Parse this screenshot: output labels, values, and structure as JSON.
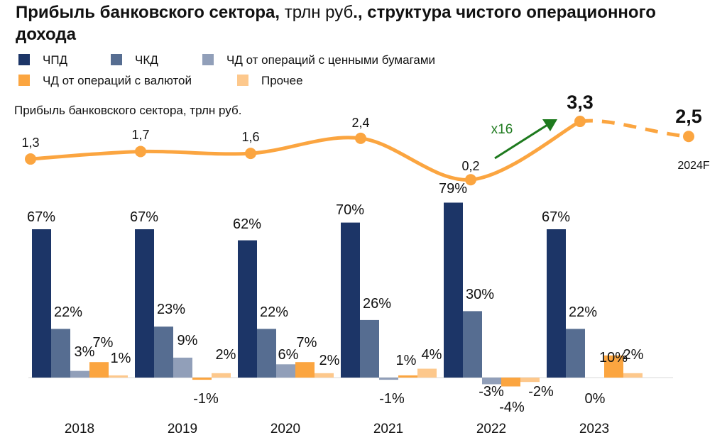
{
  "title": {
    "part1": "Прибыль банковского сектора,",
    "part2": " трлн руб",
    "part3": "., структура чистого операционного дохода"
  },
  "colors": {
    "chpd": "#1c3567",
    "chkd": "#566d91",
    "securities": "#919fb9",
    "fx": "#fba540",
    "other": "#fdc88c",
    "line": "#fba540",
    "arrow": "#1e7a1e"
  },
  "chart_data": [
    {
      "type": "line",
      "title": "Прибыль банковского сектора, трлн руб.",
      "x": [
        "2018",
        "2019",
        "2020",
        "2021",
        "2022",
        "2023",
        "2024F"
      ],
      "values": [
        1.3,
        1.7,
        1.6,
        2.4,
        0.2,
        3.3,
        2.5
      ],
      "labels": [
        "1,3",
        "1,7",
        "1,6",
        "2,4",
        "0,2",
        "3,3",
        "2,5"
      ],
      "forecast_segment": [
        "2023",
        "2024F"
      ],
      "x_last_label": "2024F",
      "annotation": "x16"
    },
    {
      "type": "bar",
      "categories": [
        "2018",
        "2019",
        "2020",
        "2021",
        "2022",
        "2023"
      ],
      "series": [
        {
          "key": "chpd",
          "name": "ЧПД",
          "values": [
            67,
            67,
            62,
            70,
            79,
            67
          ],
          "labels": [
            "67%",
            "67%",
            "62%",
            "70%",
            "79%",
            "67%"
          ]
        },
        {
          "key": "chkd",
          "name": "ЧКД",
          "values": [
            22,
            23,
            22,
            26,
            30,
            22
          ],
          "labels": [
            "22%",
            "23%",
            "22%",
            "26%",
            "30%",
            "22%"
          ]
        },
        {
          "key": "securities",
          "name": "ЧД от операций с ценными бумагами",
          "values": [
            3,
            9,
            6,
            -1,
            -3,
            0
          ],
          "labels": [
            "3%",
            "9%",
            "6%",
            "-1%",
            "-3%",
            "0%"
          ]
        },
        {
          "key": "fx",
          "name": "ЧД от операций с валютой",
          "values": [
            7,
            -1,
            7,
            1,
            -4,
            10
          ],
          "labels": [
            "7%",
            "-1%",
            "7%",
            "1%",
            "-4%",
            "10%"
          ]
        },
        {
          "key": "other",
          "name": "Прочее",
          "values": [
            1,
            2,
            2,
            4,
            -2,
            2
          ],
          "labels": [
            "1%",
            "2%",
            "2%",
            "4%",
            "-2%",
            "2%"
          ]
        }
      ]
    }
  ]
}
